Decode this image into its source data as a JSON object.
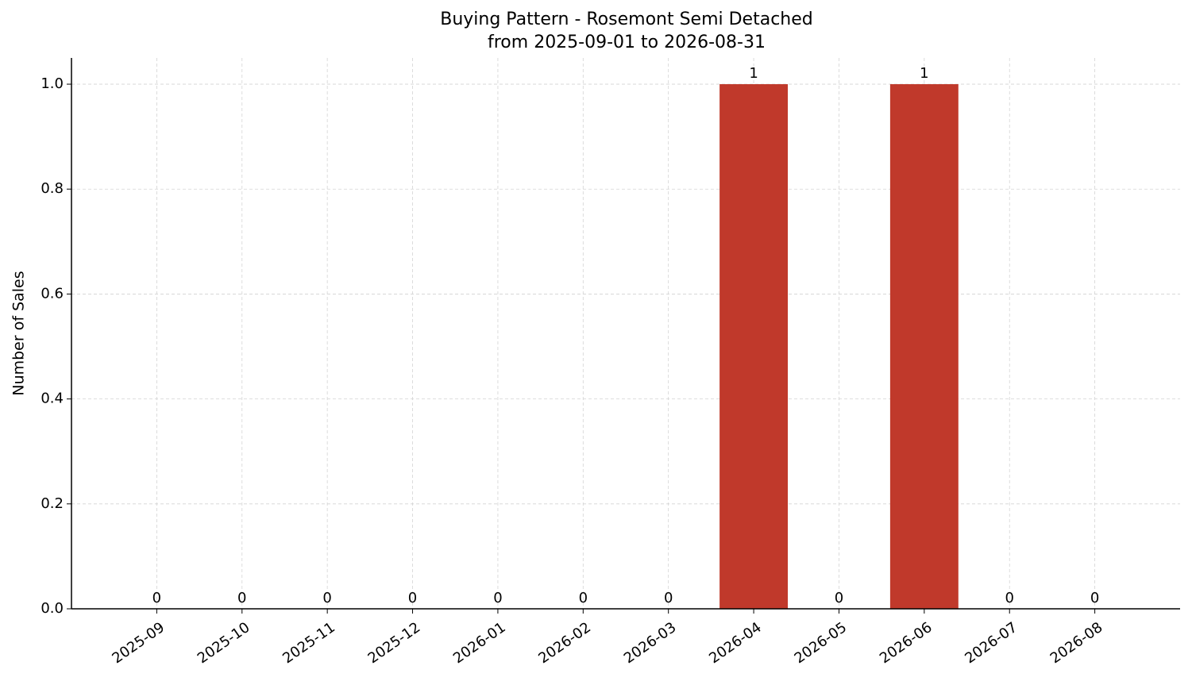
{
  "chart_data": {
    "type": "bar",
    "title": "Buying Pattern - Rosemont Semi Detached",
    "subtitle": "from 2025-09-01 to 2026-08-31",
    "y_label": "Number of Sales",
    "categories": [
      "2025-09",
      "2025-10",
      "2025-11",
      "2025-12",
      "2026-01",
      "2026-02",
      "2026-03",
      "2026-04",
      "2026-05",
      "2026-06",
      "2026-07",
      "2026-08"
    ],
    "values": [
      0,
      0,
      0,
      0,
      0,
      0,
      0,
      1,
      0,
      1,
      0,
      0
    ],
    "color": "#c0392b",
    "ylim": [
      0,
      1.05
    ],
    "yticks": [
      {
        "value": 0,
        "label": "0.0"
      },
      {
        "value": 0.2,
        "label": "0.2"
      },
      {
        "value": 0.4,
        "label": "0.4"
      },
      {
        "value": 0.6,
        "label": "0.6"
      },
      {
        "value": 0.8,
        "label": "0.8"
      },
      {
        "value": 1,
        "label": "1.0"
      }
    ],
    "grid": true
  }
}
